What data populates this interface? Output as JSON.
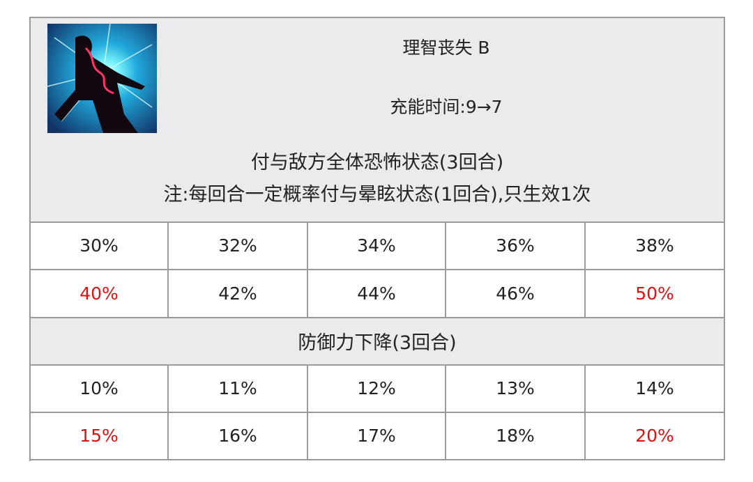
{
  "skill": {
    "name": "理智丧失 B",
    "cooldown": "充能时间:9→7",
    "icon": "skill-madness-icon"
  },
  "effect1": {
    "desc": "付与敌方全体恐怖状态(3回合)",
    "note": "注:每回合一定概率付与晕眩状态(1回合),只生效1次",
    "values": [
      "30%",
      "32%",
      "34%",
      "36%",
      "38%",
      "40%",
      "42%",
      "44%",
      "46%",
      "50%"
    ]
  },
  "effect2": {
    "desc": "防御力下降(3回合)",
    "values": [
      "10%",
      "11%",
      "12%",
      "13%",
      "14%",
      "15%",
      "16%",
      "17%",
      "18%",
      "20%"
    ]
  },
  "colors": {
    "highlight": "#e01010",
    "header_bg": "#ebebee",
    "border": "#9a9a9a"
  }
}
